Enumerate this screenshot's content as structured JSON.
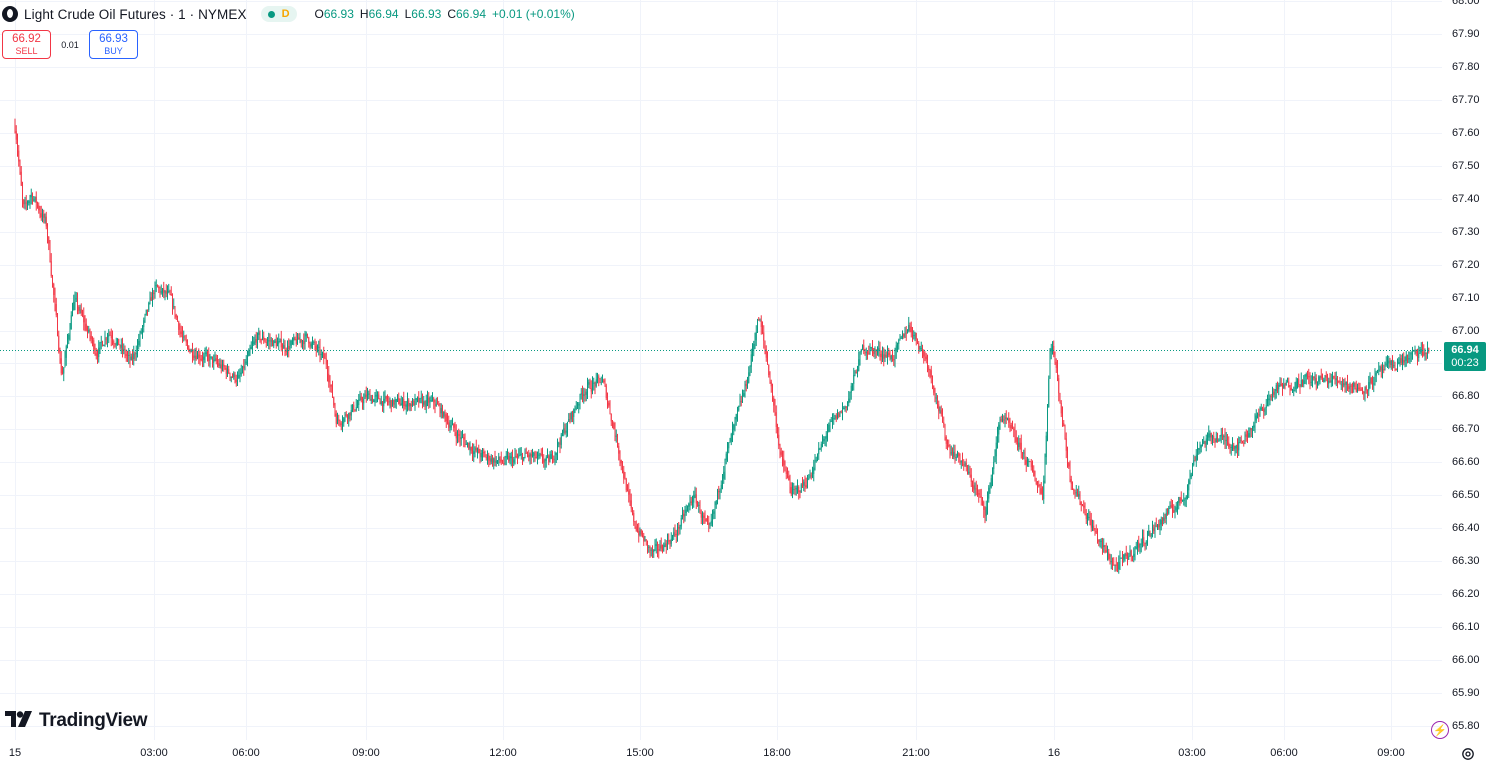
{
  "header": {
    "title": "Light Crude Oil Futures · 1 · NYMEX",
    "status_letter": "D",
    "ohlc": {
      "o_label": "O",
      "o": "66.93",
      "h_label": "H",
      "h": "66.94",
      "l_label": "L",
      "l": "66.93",
      "c_label": "C",
      "c": "66.94",
      "change": "+0.01 (+0.01%)"
    }
  },
  "trade": {
    "sell_price": "66.92",
    "sell_label": "SELL",
    "spread": "0.01",
    "buy_price": "66.93",
    "buy_label": "BUY"
  },
  "last_price": {
    "value": "66.94",
    "countdown": "00:23"
  },
  "branding": {
    "logo_text": "TradingView"
  },
  "colors": {
    "up": "#089981",
    "down": "#f23645",
    "grid": "#f0f3fa",
    "last_line": "#089981"
  },
  "icons": {
    "status": "market-open-dot",
    "bolt": "lightning-icon",
    "settings": "gear-icon"
  },
  "chart_data": {
    "type": "candlestick",
    "interval": "1 minute",
    "title": "Light Crude Oil Futures · 1 · NYMEX",
    "ylim": [
      65.8,
      68.0
    ],
    "y_ticks": [
      "68.00",
      "67.90",
      "67.80",
      "67.70",
      "67.60",
      "67.50",
      "67.40",
      "67.30",
      "67.20",
      "67.10",
      "67.00",
      "66.90",
      "66.80",
      "66.70",
      "66.60",
      "66.50",
      "66.40",
      "66.30",
      "66.20",
      "66.10",
      "66.00",
      "65.90",
      "65.80"
    ],
    "x_ticks": [
      "15",
      "03:00",
      "06:00",
      "09:00",
      "12:00",
      "15:00",
      "18:00",
      "21:00",
      "16",
      "03:00",
      "06:00",
      "09:00"
    ],
    "grid": true,
    "last_price": 66.94,
    "price_path": [
      {
        "t": "15 00:00",
        "price": 67.62
      },
      {
        "t": "15 00:10",
        "price": 67.35
      },
      {
        "t": "15 00:20",
        "price": 67.42
      },
      {
        "t": "15 00:40",
        "price": 67.32
      },
      {
        "t": "15 01:00",
        "price": 66.85
      },
      {
        "t": "15 01:15",
        "price": 67.1
      },
      {
        "t": "15 01:45",
        "price": 66.93
      },
      {
        "t": "15 02:00",
        "price": 67.0
      },
      {
        "t": "15 02:30",
        "price": 66.9
      },
      {
        "t": "15 03:00",
        "price": 67.13
      },
      {
        "t": "15 03:30",
        "price": 67.1
      },
      {
        "t": "15 04:00",
        "price": 66.95
      },
      {
        "t": "15 05:00",
        "price": 66.9
      },
      {
        "t": "15 05:45",
        "price": 66.85
      },
      {
        "t": "15 06:15",
        "price": 66.98
      },
      {
        "t": "15 07:00",
        "price": 66.95
      },
      {
        "t": "15 07:30",
        "price": 66.98
      },
      {
        "t": "15 08:00",
        "price": 66.9
      },
      {
        "t": "15 08:15",
        "price": 66.72
      },
      {
        "t": "15 09:00",
        "price": 66.8
      },
      {
        "t": "15 09:30",
        "price": 66.78
      },
      {
        "t": "15 10:30",
        "price": 66.78
      },
      {
        "t": "15 11:00",
        "price": 66.68
      },
      {
        "t": "15 11:30",
        "price": 66.62
      },
      {
        "t": "15 12:00",
        "price": 66.6
      },
      {
        "t": "15 12:30",
        "price": 66.62
      },
      {
        "t": "15 13:00",
        "price": 66.6
      },
      {
        "t": "15 13:45",
        "price": 66.82
      },
      {
        "t": "15 14:10",
        "price": 66.85
      },
      {
        "t": "15 14:30",
        "price": 66.65
      },
      {
        "t": "15 14:50",
        "price": 66.42
      },
      {
        "t": "15 15:15",
        "price": 66.32
      },
      {
        "t": "15 15:45",
        "price": 66.38
      },
      {
        "t": "15 16:10",
        "price": 66.5
      },
      {
        "t": "15 16:30",
        "price": 66.38
      },
      {
        "t": "15 16:50",
        "price": 66.6
      },
      {
        "t": "15 17:20",
        "price": 66.85
      },
      {
        "t": "15 17:35",
        "price": 67.05
      },
      {
        "t": "15 17:50",
        "price": 66.85
      },
      {
        "t": "15 18:05",
        "price": 66.6
      },
      {
        "t": "15 18:20",
        "price": 66.5
      },
      {
        "t": "15 18:40",
        "price": 66.55
      },
      {
        "t": "15 19:05",
        "price": 66.7
      },
      {
        "t": "15 19:30",
        "price": 66.78
      },
      {
        "t": "15 19:50",
        "price": 66.95
      },
      {
        "t": "15 20:30",
        "price": 66.92
      },
      {
        "t": "15 20:50",
        "price": 67.02
      },
      {
        "t": "15 21:15",
        "price": 66.9
      },
      {
        "t": "15 21:40",
        "price": 66.65
      },
      {
        "t": "15 22:00",
        "price": 66.6
      },
      {
        "t": "15 22:30",
        "price": 66.45
      },
      {
        "t": "15 22:50",
        "price": 66.75
      },
      {
        "t": "15 23:20",
        "price": 66.62
      },
      {
        "t": "15 23:45",
        "price": 66.5
      },
      {
        "t": "15 23:55",
        "price": 67.0
      },
      {
        "t": "16 00:20",
        "price": 66.55
      },
      {
        "t": "16 00:40",
        "price": 66.45
      },
      {
        "t": "16 01:00",
        "price": 66.35
      },
      {
        "t": "16 01:20",
        "price": 66.28
      },
      {
        "t": "16 01:50",
        "price": 66.35
      },
      {
        "t": "16 02:30",
        "price": 66.45
      },
      {
        "t": "16 02:50",
        "price": 66.5
      },
      {
        "t": "16 03:10",
        "price": 66.65
      },
      {
        "t": "16 03:40",
        "price": 66.68
      },
      {
        "t": "16 04:30",
        "price": 66.65
      },
      {
        "t": "16 05:00",
        "price": 66.72
      },
      {
        "t": "16 05:40",
        "price": 66.82
      },
      {
        "t": "16 06:30",
        "price": 66.85
      },
      {
        "t": "16 07:30",
        "price": 66.85
      },
      {
        "t": "16 08:10",
        "price": 66.82
      },
      {
        "t": "16 08:45",
        "price": 66.88
      },
      {
        "t": "16 09:30",
        "price": 66.92
      },
      {
        "t": "16 10:05",
        "price": 66.94
      }
    ]
  }
}
